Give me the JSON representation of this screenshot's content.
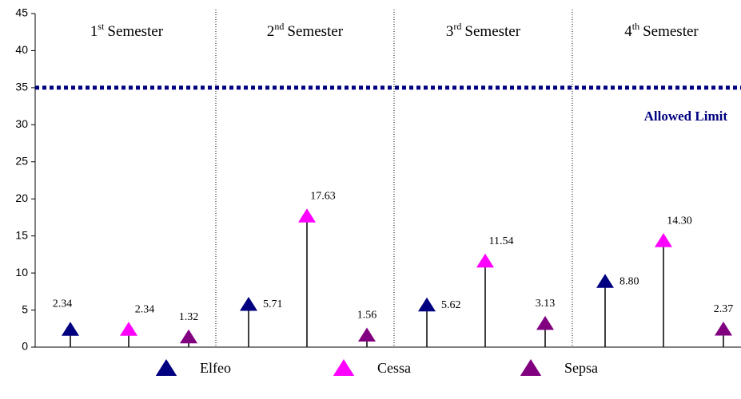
{
  "chart_data": {
    "type": "stem",
    "categories": [
      {
        "ordinal": "1",
        "suffix": "st",
        "word": "Semester"
      },
      {
        "ordinal": "2",
        "suffix": "nd",
        "word": "Semester"
      },
      {
        "ordinal": "3",
        "suffix": "rd",
        "word": "Semester"
      },
      {
        "ordinal": "4",
        "suffix": "th",
        "word": "Semester"
      }
    ],
    "series": [
      {
        "name": "Elfeo",
        "color": "#000080",
        "values": [
          2.34,
          5.71,
          5.62,
          8.8
        ],
        "value_labels": [
          "2.34",
          "5.71",
          "5.62",
          "8.80"
        ]
      },
      {
        "name": "Cessa",
        "color": "#ff00ff",
        "values": [
          2.34,
          17.63,
          11.54,
          14.3
        ],
        "value_labels": [
          "2.34",
          "17.63",
          "11.54",
          "14.30"
        ]
      },
      {
        "name": "Sepsa",
        "color": "#800080",
        "values": [
          1.32,
          1.56,
          3.13,
          2.37
        ],
        "value_labels": [
          "1.32",
          "1.56",
          "3.13",
          "2.37"
        ]
      }
    ],
    "ylim": [
      0,
      45
    ],
    "yticks": [
      0,
      5,
      10,
      15,
      20,
      25,
      30,
      35,
      40,
      45
    ],
    "reference_line": {
      "value": 35,
      "label": "Allowed Limit",
      "color": "#000080"
    }
  }
}
